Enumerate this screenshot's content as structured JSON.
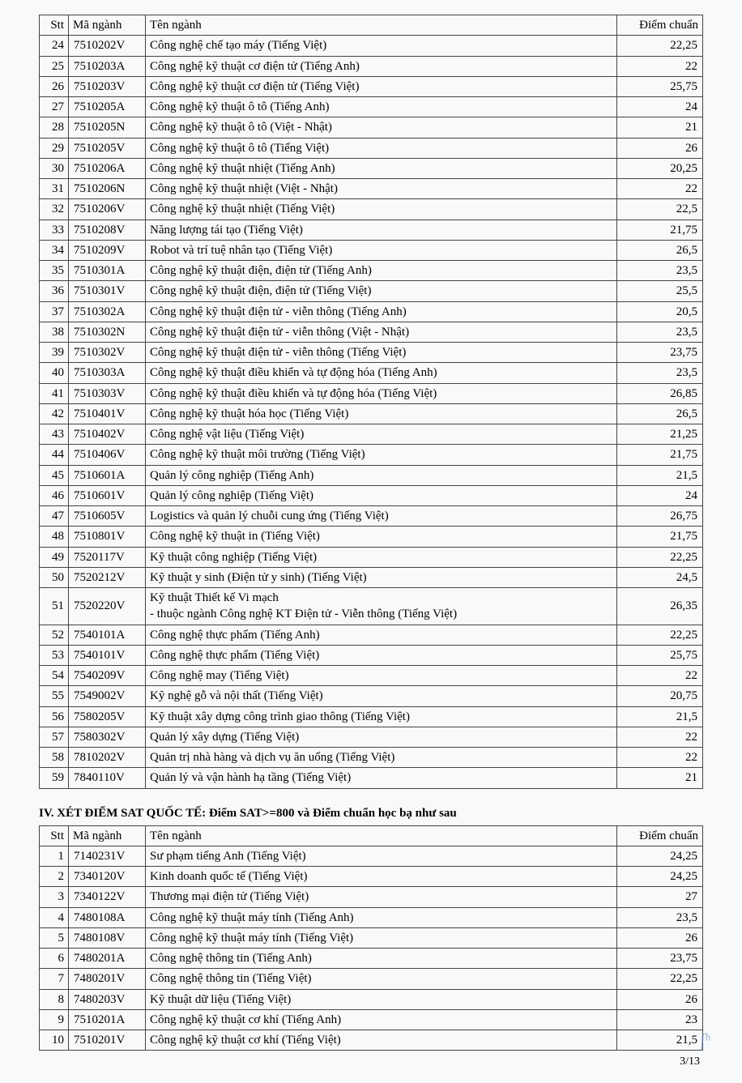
{
  "table1": {
    "headers": {
      "stt": "Stt",
      "code": "Mã ngành",
      "name": "Tên ngành",
      "score": "Điểm chuẩn"
    },
    "rows": [
      {
        "stt": "24",
        "code": "7510202V",
        "name": "Công nghệ chế tạo máy (Tiếng Việt)",
        "score": "22,25"
      },
      {
        "stt": "25",
        "code": "7510203A",
        "name": "Công nghệ kỹ thuật cơ điện tử (Tiếng Anh)",
        "score": "22"
      },
      {
        "stt": "26",
        "code": "7510203V",
        "name": "Công nghệ kỹ thuật cơ điện tử (Tiếng Việt)",
        "score": "25,75"
      },
      {
        "stt": "27",
        "code": "7510205A",
        "name": "Công nghệ kỹ thuật ô tô (Tiếng Anh)",
        "score": "24"
      },
      {
        "stt": "28",
        "code": "7510205N",
        "name": "Công nghệ kỹ thuật ô tô (Việt - Nhật)",
        "score": "21"
      },
      {
        "stt": "29",
        "code": "7510205V",
        "name": "Công nghệ kỹ thuật ô tô (Tiếng Việt)",
        "score": "26"
      },
      {
        "stt": "30",
        "code": "7510206A",
        "name": "Công nghệ kỹ thuật nhiệt (Tiếng Anh)",
        "score": "20,25"
      },
      {
        "stt": "31",
        "code": "7510206N",
        "name": "Công nghệ kỹ thuật nhiệt (Việt - Nhật)",
        "score": "22"
      },
      {
        "stt": "32",
        "code": "7510206V",
        "name": "Công nghệ kỹ thuật nhiệt (Tiếng Việt)",
        "score": "22,5"
      },
      {
        "stt": "33",
        "code": "7510208V",
        "name": "Năng lượng tái tạo (Tiếng Việt)",
        "score": "21,75"
      },
      {
        "stt": "34",
        "code": "7510209V",
        "name": "Robot và trí tuệ nhân tạo (Tiếng Việt)",
        "score": "26,5"
      },
      {
        "stt": "35",
        "code": "7510301A",
        "name": "Công nghệ kỹ thuật điện, điện tử (Tiếng Anh)",
        "score": "23,5"
      },
      {
        "stt": "36",
        "code": "7510301V",
        "name": "Công nghệ kỹ thuật điện, điện tử (Tiếng Việt)",
        "score": "25,5"
      },
      {
        "stt": "37",
        "code": "7510302A",
        "name": "Công nghệ kỹ thuật điện tử - viễn thông (Tiếng Anh)",
        "score": "20,5"
      },
      {
        "stt": "38",
        "code": "7510302N",
        "name": "Công nghệ kỹ thuật điện tử - viễn thông (Việt - Nhật)",
        "score": "23,5"
      },
      {
        "stt": "39",
        "code": "7510302V",
        "name": "Công nghệ kỹ thuật điện tử - viễn thông (Tiếng Việt)",
        "score": "23,75"
      },
      {
        "stt": "40",
        "code": "7510303A",
        "name": "Công nghệ kỹ thuật điều khiển và tự động hóa (Tiếng Anh)",
        "score": "23,5"
      },
      {
        "stt": "41",
        "code": "7510303V",
        "name": "Công nghệ kỹ thuật điều khiển và tự động hóa (Tiếng Việt)",
        "score": "26,85"
      },
      {
        "stt": "42",
        "code": "7510401V",
        "name": "Công nghệ kỹ thuật hóa học (Tiếng Việt)",
        "score": "26,5"
      },
      {
        "stt": "43",
        "code": "7510402V",
        "name": "Công nghệ vật liệu (Tiếng Việt)",
        "score": "21,25"
      },
      {
        "stt": "44",
        "code": "7510406V",
        "name": "Công nghệ kỹ thuật môi trường (Tiếng Việt)",
        "score": "21,75"
      },
      {
        "stt": "45",
        "code": "7510601A",
        "name": "Quản lý công nghiệp (Tiếng Anh)",
        "score": "21,5"
      },
      {
        "stt": "46",
        "code": "7510601V",
        "name": "Quản lý công nghiệp (Tiếng Việt)",
        "score": "24"
      },
      {
        "stt": "47",
        "code": "7510605V",
        "name": "Logistics và quản lý chuỗi cung ứng (Tiếng Việt)",
        "score": "26,75"
      },
      {
        "stt": "48",
        "code": "7510801V",
        "name": "Công nghệ kỹ thuật in (Tiếng Việt)",
        "score": "21,75"
      },
      {
        "stt": "49",
        "code": "7520117V",
        "name": "Kỹ thuật công nghiệp (Tiếng Việt)",
        "score": "22,25"
      },
      {
        "stt": "50",
        "code": "7520212V",
        "name": "Kỹ thuật y sinh (Điện tử y sinh) (Tiếng Việt)",
        "score": "24,5"
      },
      {
        "stt": "51",
        "code": "7520220V",
        "name_line1": "Kỹ thuật Thiết kế Vi mạch",
        "name_line2": "- thuộc ngành Công nghệ KT Điện tử - Viễn thông (Tiếng Việt)",
        "score": "26,35",
        "multiline": true
      },
      {
        "stt": "52",
        "code": "7540101A",
        "name": "Công nghệ thực phẩm (Tiếng Anh)",
        "score": "22,25"
      },
      {
        "stt": "53",
        "code": "7540101V",
        "name": "Công nghệ thực phẩm (Tiếng Việt)",
        "score": "25,75"
      },
      {
        "stt": "54",
        "code": "7540209V",
        "name": "Công nghệ may (Tiếng Việt)",
        "score": "22"
      },
      {
        "stt": "55",
        "code": "7549002V",
        "name": "Kỹ nghệ gỗ và nội thất (Tiếng Việt)",
        "score": "20,75"
      },
      {
        "stt": "56",
        "code": "7580205V",
        "name": "Kỹ thuật xây dựng công trình giao thông (Tiếng Việt)",
        "score": "21,5"
      },
      {
        "stt": "57",
        "code": "7580302V",
        "name": "Quản lý xây dựng (Tiếng Việt)",
        "score": "22"
      },
      {
        "stt": "58",
        "code": "7810202V",
        "name": "Quản trị nhà hàng và dịch vụ ăn uống (Tiếng Việt)",
        "score": "22"
      },
      {
        "stt": "59",
        "code": "7840110V",
        "name": "Quản lý và vận hành hạ tầng (Tiếng Việt)",
        "score": "21"
      }
    ]
  },
  "section_title": "IV. XÉT ĐIỂM SAT QUỐC TẾ: Điểm SAT>=800 và Điểm chuẩn học bạ như sau",
  "table2": {
    "headers": {
      "stt": "Stt",
      "code": "Mã ngành",
      "name": "Tên ngành",
      "score": "Điểm chuẩn"
    },
    "rows": [
      {
        "stt": "1",
        "code": "7140231V",
        "name": "Sư phạm tiếng Anh (Tiếng Việt)",
        "score": "24,25"
      },
      {
        "stt": "2",
        "code": "7340120V",
        "name": "Kinh doanh quốc tế (Tiếng Việt)",
        "score": "24,25"
      },
      {
        "stt": "3",
        "code": "7340122V",
        "name": "Thương mại điện tử (Tiếng Việt)",
        "score": "27"
      },
      {
        "stt": "4",
        "code": "7480108A",
        "name": "Công nghệ kỹ thuật máy tính (Tiếng Anh)",
        "score": "23,5"
      },
      {
        "stt": "5",
        "code": "7480108V",
        "name": "Công nghệ kỹ thuật máy tính (Tiếng Việt)",
        "score": "26"
      },
      {
        "stt": "6",
        "code": "7480201A",
        "name": "Công nghệ thông tin (Tiếng Anh)",
        "score": "23,75"
      },
      {
        "stt": "7",
        "code": "7480201V",
        "name": "Công nghệ thông tin (Tiếng Việt)",
        "score": "22,25"
      },
      {
        "stt": "8",
        "code": "7480203V",
        "name": "Kỹ thuật dữ liệu (Tiếng Việt)",
        "score": "26"
      },
      {
        "stt": "9",
        "code": "7510201A",
        "name": "Công nghệ kỹ thuật cơ khí (Tiếng Anh)",
        "score": "23"
      },
      {
        "stt": "10",
        "code": "7510201V",
        "name": "Công nghệ kỹ thuật cơ khí (Tiếng Việt)",
        "score": "21,5"
      }
    ]
  },
  "page_number": "3/13"
}
